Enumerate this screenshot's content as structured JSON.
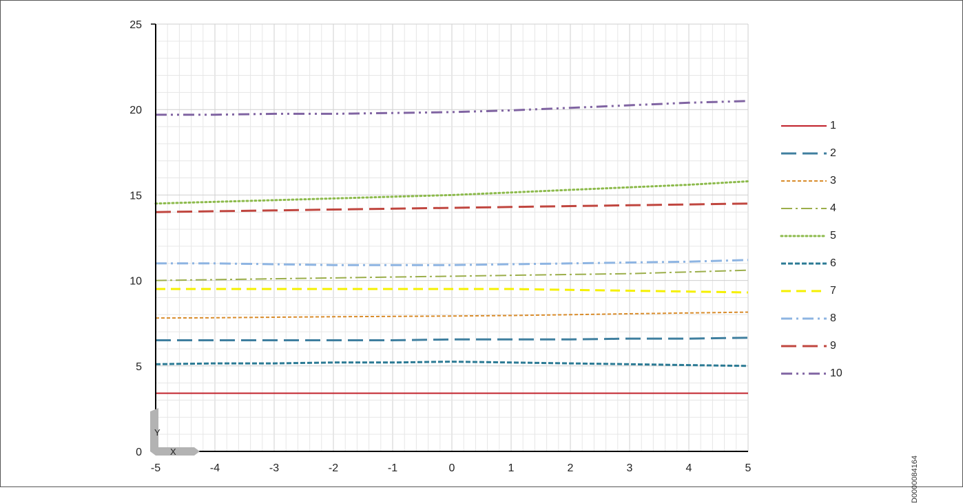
{
  "doc_id": "D0000084164",
  "chart_data": {
    "type": "line",
    "title": "",
    "xlabel": "",
    "ylabel": "",
    "xlim": [
      -5,
      5
    ],
    "ylim": [
      0,
      25
    ],
    "x_ticks": [
      "-5",
      "-4",
      "-3",
      "-2",
      "-1",
      "0",
      "1",
      "2",
      "3",
      "4",
      "5"
    ],
    "y_ticks": [
      "0",
      "5",
      "10",
      "15",
      "20",
      "25"
    ],
    "grid": true,
    "legend_position": "right",
    "axis_marker_labels": {
      "y": "Y",
      "x": "X"
    },
    "x": [
      -5,
      -4,
      -3,
      -2,
      -1,
      0,
      1,
      2,
      3,
      4,
      5
    ],
    "series": [
      {
        "name": "1",
        "color": "#c0202a",
        "style": "solid",
        "values": [
          3.4,
          3.4,
          3.4,
          3.4,
          3.4,
          3.4,
          3.4,
          3.4,
          3.4,
          3.4,
          3.4
        ]
      },
      {
        "name": "2",
        "color": "#3f7f9f",
        "style": "long-dash",
        "values": [
          6.5,
          6.5,
          6.5,
          6.5,
          6.5,
          6.55,
          6.55,
          6.55,
          6.6,
          6.6,
          6.65
        ]
      },
      {
        "name": "3",
        "color": "#d98c2b",
        "style": "short-dash",
        "values": [
          7.8,
          7.82,
          7.85,
          7.88,
          7.9,
          7.92,
          7.95,
          8.0,
          8.05,
          8.1,
          8.15
        ]
      },
      {
        "name": "4",
        "color": "#9bae4a",
        "style": "dash-dot",
        "values": [
          10.0,
          10.05,
          10.1,
          10.15,
          10.2,
          10.25,
          10.3,
          10.35,
          10.4,
          10.5,
          10.6
        ]
      },
      {
        "name": "5",
        "color": "#8cba4b",
        "style": "dot",
        "values": [
          14.5,
          14.6,
          14.7,
          14.8,
          14.9,
          15.0,
          15.15,
          15.3,
          15.45,
          15.6,
          15.8
        ]
      },
      {
        "name": "6",
        "color": "#2b7a94",
        "style": "dense-dash",
        "values": [
          5.1,
          5.15,
          5.15,
          5.2,
          5.2,
          5.25,
          5.2,
          5.15,
          5.1,
          5.05,
          5.0
        ]
      },
      {
        "name": "7",
        "color": "#f5f000",
        "style": "dash",
        "values": [
          9.5,
          9.5,
          9.5,
          9.5,
          9.5,
          9.5,
          9.5,
          9.45,
          9.4,
          9.35,
          9.3
        ]
      },
      {
        "name": "8",
        "color": "#8db4e2",
        "style": "long-dash-dot",
        "values": [
          11.0,
          11.0,
          10.95,
          10.9,
          10.9,
          10.9,
          10.95,
          11.0,
          11.05,
          11.1,
          11.2
        ]
      },
      {
        "name": "9",
        "color": "#c0463f",
        "style": "long-dash",
        "values": [
          14.0,
          14.05,
          14.1,
          14.15,
          14.2,
          14.25,
          14.3,
          14.35,
          14.4,
          14.45,
          14.5
        ]
      },
      {
        "name": "10",
        "color": "#8064a2",
        "style": "dash-dot-dot",
        "values": [
          19.7,
          19.7,
          19.75,
          19.75,
          19.8,
          19.85,
          19.95,
          20.1,
          20.25,
          20.4,
          20.5
        ]
      }
    ]
  }
}
